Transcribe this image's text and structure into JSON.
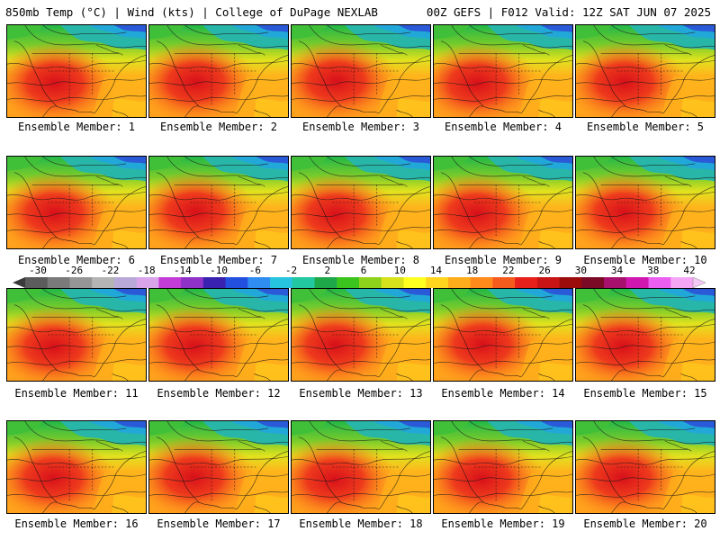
{
  "header": {
    "left": "850mb Temp (°C) | Wind (kts) | College of DuPage NEXLAB",
    "right": "00Z GEFS | F012 Valid: 12Z SAT JUN 07 2025"
  },
  "members": [
    {
      "caption": "Ensemble Member: 1"
    },
    {
      "caption": "Ensemble Member: 2"
    },
    {
      "caption": "Ensemble Member: 3"
    },
    {
      "caption": "Ensemble Member: 4"
    },
    {
      "caption": "Ensemble Member: 5"
    },
    {
      "caption": "Ensemble Member: 6"
    },
    {
      "caption": "Ensemble Member: 7"
    },
    {
      "caption": "Ensemble Member: 8"
    },
    {
      "caption": "Ensemble Member: 9"
    },
    {
      "caption": "Ensemble Member: 10"
    },
    {
      "caption": "Ensemble Member: 11"
    },
    {
      "caption": "Ensemble Member: 12"
    },
    {
      "caption": "Ensemble Member: 13"
    },
    {
      "caption": "Ensemble Member: 14"
    },
    {
      "caption": "Ensemble Member: 15"
    },
    {
      "caption": "Ensemble Member: 16"
    },
    {
      "caption": "Ensemble Member: 17"
    },
    {
      "caption": "Ensemble Member: 18"
    },
    {
      "caption": "Ensemble Member: 19"
    },
    {
      "caption": "Ensemble Member: 20"
    }
  ],
  "color_scale": {
    "labels": [
      "-30",
      "-26",
      "-22",
      "-18",
      "-14",
      "-10",
      "-6",
      "-2",
      "2",
      "6",
      "10",
      "14",
      "18",
      "22",
      "26",
      "30",
      "34",
      "38",
      "42"
    ],
    "colors": [
      "#5c5c5c",
      "#7a7a7a",
      "#969696",
      "#b4b4b4",
      "#b8a9d8",
      "#d9a4e9",
      "#c43cd8",
      "#8e32c8",
      "#3a22b0",
      "#2450e0",
      "#2f8cf0",
      "#27c4e0",
      "#22c8a0",
      "#1fa84a",
      "#3cc41e",
      "#8ed21c",
      "#d8e21c",
      "#ffff20",
      "#ffd51e",
      "#ffac1c",
      "#ff8a1c",
      "#f45b1c",
      "#e8201c",
      "#c81414",
      "#9c0c0c",
      "#7a0a26",
      "#a8106e",
      "#d018b0",
      "#ec5ef0",
      "#f4a6f4"
    ],
    "scale_colors": {
      "cold": "#1a3fe0",
      "cool": "#22c8c8",
      "mild": "#30b040",
      "warm": "#ffe21e",
      "hot": "#ff9a1c",
      "very_hot": "#e8301c"
    }
  }
}
